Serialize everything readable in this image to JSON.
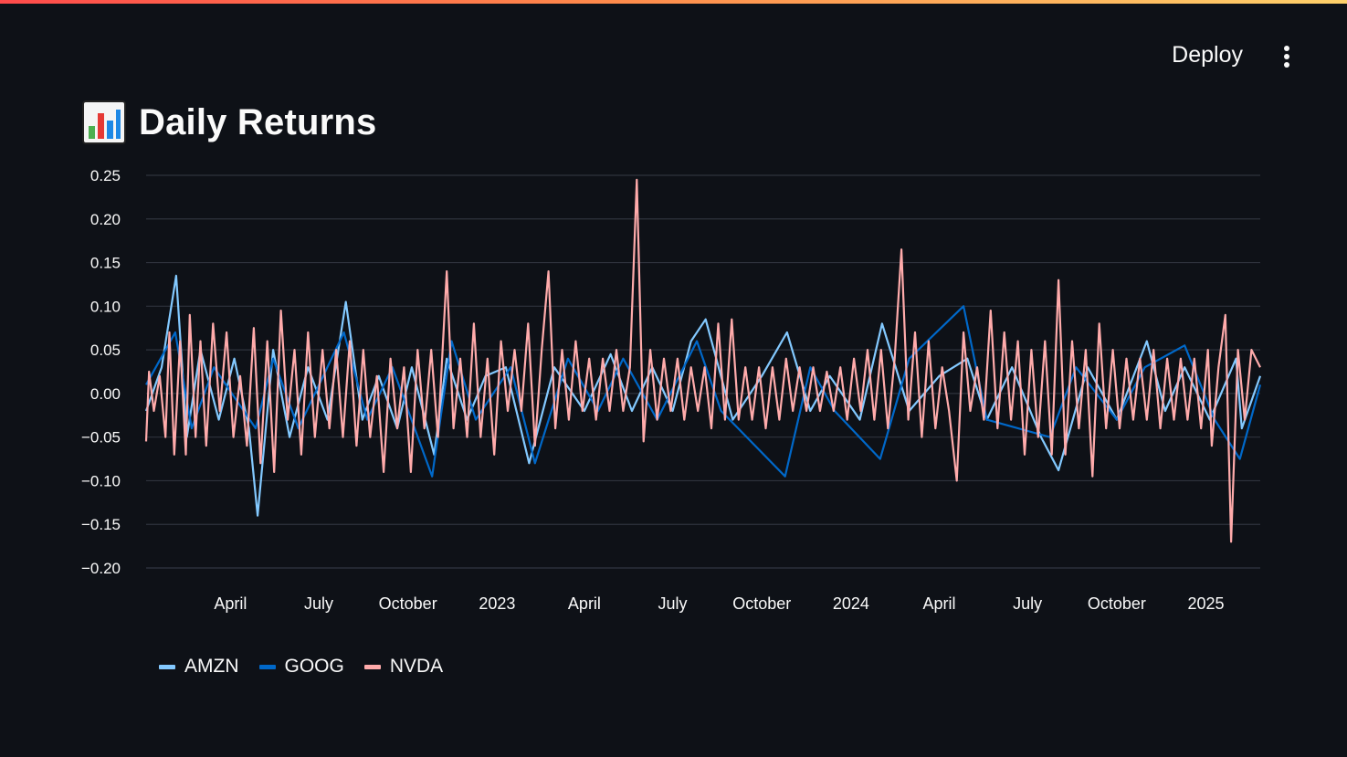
{
  "header": {
    "deploy_label": "Deploy",
    "menu_icon": "kebab-menu-icon"
  },
  "page": {
    "title": "Daily Returns",
    "title_icon": "bar-chart-icon"
  },
  "colors": {
    "background": "#0e1117",
    "grid": "#2f333d",
    "text": "#fafafa",
    "AMZN": "#83c9ff",
    "GOOG": "#0068c9",
    "NVDA": "#ffabab"
  },
  "chart_data": {
    "type": "line",
    "title": "",
    "xlabel": "",
    "ylabel": "",
    "x_range": [
      "2022-01-04",
      "2025-02-26"
    ],
    "ylim": [
      -0.2,
      0.25
    ],
    "y_ticks": [
      0.25,
      0.2,
      0.15,
      0.1,
      0.05,
      0.0,
      -0.05,
      -0.1,
      -0.15,
      -0.2
    ],
    "y_tick_labels": [
      "0.25",
      "0.20",
      "0.15",
      "0.10",
      "0.05",
      "0.00",
      "−0.05",
      "−0.10",
      "−0.15",
      "−0.20"
    ],
    "x_ticks": [
      {
        "date": "2022-04-01",
        "label": "April"
      },
      {
        "date": "2022-07-01",
        "label": "July"
      },
      {
        "date": "2022-10-01",
        "label": "October"
      },
      {
        "date": "2023-01-01",
        "label": "2023"
      },
      {
        "date": "2023-04-01",
        "label": "April"
      },
      {
        "date": "2023-07-01",
        "label": "July"
      },
      {
        "date": "2023-10-01",
        "label": "October"
      },
      {
        "date": "2024-01-01",
        "label": "2024"
      },
      {
        "date": "2024-04-01",
        "label": "April"
      },
      {
        "date": "2024-07-01",
        "label": "July"
      },
      {
        "date": "2024-10-01",
        "label": "October"
      },
      {
        "date": "2025-01-01",
        "label": "2025"
      }
    ],
    "grid": true,
    "legend_position": "bottom-left",
    "series": [
      {
        "name": "AMZN",
        "points": [
          [
            "2022-01-04",
            -0.02
          ],
          [
            "2022-01-20",
            0.03
          ],
          [
            "2022-02-04",
            0.135
          ],
          [
            "2022-02-15",
            -0.05
          ],
          [
            "2022-03-01",
            0.05
          ],
          [
            "2022-03-20",
            -0.03
          ],
          [
            "2022-04-05",
            0.04
          ],
          [
            "2022-04-20",
            -0.04
          ],
          [
            "2022-04-29",
            -0.14
          ],
          [
            "2022-05-15",
            0.05
          ],
          [
            "2022-06-01",
            -0.05
          ],
          [
            "2022-06-20",
            0.03
          ],
          [
            "2022-07-10",
            -0.03
          ],
          [
            "2022-07-29",
            0.105
          ],
          [
            "2022-08-15",
            -0.03
          ],
          [
            "2022-09-01",
            0.02
          ],
          [
            "2022-09-20",
            -0.04
          ],
          [
            "2022-10-05",
            0.03
          ],
          [
            "2022-10-28",
            -0.07
          ],
          [
            "2022-11-10",
            0.04
          ],
          [
            "2022-12-01",
            -0.03
          ],
          [
            "2022-12-20",
            0.02
          ],
          [
            "2023-01-10",
            0.03
          ],
          [
            "2023-02-03",
            -0.08
          ],
          [
            "2023-03-01",
            0.03
          ],
          [
            "2023-04-01",
            -0.02
          ],
          [
            "2023-04-28",
            0.045
          ],
          [
            "2023-05-20",
            -0.02
          ],
          [
            "2023-06-10",
            0.03
          ],
          [
            "2023-07-01",
            -0.02
          ],
          [
            "2023-07-20",
            0.06
          ],
          [
            "2023-08-04",
            0.085
          ],
          [
            "2023-09-01",
            -0.03
          ],
          [
            "2023-10-01",
            0.02
          ],
          [
            "2023-10-27",
            0.07
          ],
          [
            "2023-11-20",
            -0.02
          ],
          [
            "2023-12-10",
            0.02
          ],
          [
            "2024-01-10",
            -0.03
          ],
          [
            "2024-02-02",
            0.08
          ],
          [
            "2024-03-01",
            -0.02
          ],
          [
            "2024-04-01",
            0.02
          ],
          [
            "2024-04-30",
            0.04
          ],
          [
            "2024-05-20",
            -0.03
          ],
          [
            "2024-06-15",
            0.03
          ],
          [
            "2024-07-15",
            -0.05
          ],
          [
            "2024-08-02",
            -0.088
          ],
          [
            "2024-09-01",
            0.03
          ],
          [
            "2024-10-01",
            -0.03
          ],
          [
            "2024-11-01",
            0.06
          ],
          [
            "2024-11-20",
            -0.02
          ],
          [
            "2024-12-10",
            0.03
          ],
          [
            "2025-01-05",
            -0.03
          ],
          [
            "2025-02-01",
            0.04
          ],
          [
            "2025-02-07",
            -0.04
          ],
          [
            "2025-02-26",
            0.02
          ]
        ]
      },
      {
        "name": "GOOG",
        "points": [
          [
            "2022-01-04",
            0.01
          ],
          [
            "2022-02-03",
            0.07
          ],
          [
            "2022-02-20",
            -0.04
          ],
          [
            "2022-03-15",
            0.03
          ],
          [
            "2022-04-27",
            -0.04
          ],
          [
            "2022-05-15",
            0.04
          ],
          [
            "2022-06-10",
            -0.04
          ],
          [
            "2022-07-27",
            0.07
          ],
          [
            "2022-08-20",
            -0.03
          ],
          [
            "2022-09-15",
            0.03
          ],
          [
            "2022-10-26",
            -0.095
          ],
          [
            "2022-11-15",
            0.06
          ],
          [
            "2022-12-10",
            -0.03
          ],
          [
            "2023-01-15",
            0.03
          ],
          [
            "2023-02-09",
            -0.08
          ],
          [
            "2023-03-15",
            0.04
          ],
          [
            "2023-04-15",
            -0.02
          ],
          [
            "2023-05-11",
            0.04
          ],
          [
            "2023-06-15",
            -0.03
          ],
          [
            "2023-07-26",
            0.06
          ],
          [
            "2023-08-20",
            -0.02
          ],
          [
            "2023-10-25",
            -0.095
          ],
          [
            "2023-11-20",
            0.03
          ],
          [
            "2023-12-15",
            -0.02
          ],
          [
            "2024-01-31",
            -0.075
          ],
          [
            "2024-03-01",
            0.04
          ],
          [
            "2024-04-26",
            0.1
          ],
          [
            "2024-05-20",
            -0.03
          ],
          [
            "2024-07-24",
            -0.05
          ],
          [
            "2024-08-20",
            0.03
          ],
          [
            "2024-10-01",
            -0.03
          ],
          [
            "2024-10-30",
            0.03
          ],
          [
            "2024-12-10",
            0.055
          ],
          [
            "2025-01-10",
            -0.03
          ],
          [
            "2025-02-05",
            -0.075
          ],
          [
            "2025-02-26",
            0.01
          ]
        ]
      },
      {
        "name": "NVDA",
        "points": [
          [
            "2022-01-04",
            -0.055
          ],
          [
            "2022-01-07",
            0.025
          ],
          [
            "2022-01-12",
            -0.02
          ],
          [
            "2022-01-18",
            0.02
          ],
          [
            "2022-01-24",
            -0.05
          ],
          [
            "2022-01-28",
            0.07
          ],
          [
            "2022-02-02",
            -0.07
          ],
          [
            "2022-02-08",
            0.06
          ],
          [
            "2022-02-14",
            -0.07
          ],
          [
            "2022-02-18",
            0.09
          ],
          [
            "2022-02-24",
            -0.05
          ],
          [
            "2022-03-01",
            0.06
          ],
          [
            "2022-03-07",
            -0.06
          ],
          [
            "2022-03-14",
            0.08
          ],
          [
            "2022-03-21",
            -0.02
          ],
          [
            "2022-03-28",
            0.07
          ],
          [
            "2022-04-04",
            -0.05
          ],
          [
            "2022-04-11",
            0.02
          ],
          [
            "2022-04-18",
            -0.06
          ],
          [
            "2022-04-25",
            0.075
          ],
          [
            "2022-05-02",
            -0.08
          ],
          [
            "2022-05-09",
            0.06
          ],
          [
            "2022-05-16",
            -0.09
          ],
          [
            "2022-05-23",
            0.095
          ],
          [
            "2022-05-30",
            -0.03
          ],
          [
            "2022-06-06",
            0.05
          ],
          [
            "2022-06-13",
            -0.07
          ],
          [
            "2022-06-20",
            0.07
          ],
          [
            "2022-06-27",
            -0.05
          ],
          [
            "2022-07-05",
            0.05
          ],
          [
            "2022-07-12",
            -0.04
          ],
          [
            "2022-07-19",
            0.05
          ],
          [
            "2022-07-26",
            -0.05
          ],
          [
            "2022-08-02",
            0.06
          ],
          [
            "2022-08-09",
            -0.06
          ],
          [
            "2022-08-16",
            0.05
          ],
          [
            "2022-08-23",
            -0.05
          ],
          [
            "2022-08-30",
            0.02
          ],
          [
            "2022-09-06",
            -0.09
          ],
          [
            "2022-09-13",
            0.04
          ],
          [
            "2022-09-20",
            -0.04
          ],
          [
            "2022-09-27",
            0.03
          ],
          [
            "2022-10-04",
            -0.09
          ],
          [
            "2022-10-11",
            0.05
          ],
          [
            "2022-10-18",
            -0.04
          ],
          [
            "2022-10-25",
            0.05
          ],
          [
            "2022-11-01",
            -0.05
          ],
          [
            "2022-11-10",
            0.14
          ],
          [
            "2022-11-17",
            -0.04
          ],
          [
            "2022-11-24",
            0.04
          ],
          [
            "2022-12-01",
            -0.05
          ],
          [
            "2022-12-08",
            0.08
          ],
          [
            "2022-12-15",
            -0.05
          ],
          [
            "2022-12-22",
            0.04
          ],
          [
            "2022-12-29",
            -0.07
          ],
          [
            "2023-01-05",
            0.06
          ],
          [
            "2023-01-12",
            -0.02
          ],
          [
            "2023-01-19",
            0.05
          ],
          [
            "2023-01-26",
            -0.02
          ],
          [
            "2023-02-02",
            0.08
          ],
          [
            "2023-02-09",
            -0.06
          ],
          [
            "2023-02-16",
            0.05
          ],
          [
            "2023-02-23",
            0.14
          ],
          [
            "2023-03-02",
            -0.04
          ],
          [
            "2023-03-09",
            0.05
          ],
          [
            "2023-03-16",
            -0.03
          ],
          [
            "2023-03-23",
            0.06
          ],
          [
            "2023-03-30",
            -0.02
          ],
          [
            "2023-04-06",
            0.04
          ],
          [
            "2023-04-13",
            -0.03
          ],
          [
            "2023-04-20",
            0.04
          ],
          [
            "2023-04-27",
            -0.02
          ],
          [
            "2023-05-04",
            0.05
          ],
          [
            "2023-05-11",
            -0.02
          ],
          [
            "2023-05-18",
            0.03
          ],
          [
            "2023-05-25",
            0.245
          ],
          [
            "2023-06-01",
            -0.055
          ],
          [
            "2023-06-08",
            0.05
          ],
          [
            "2023-06-15",
            -0.03
          ],
          [
            "2023-06-22",
            0.04
          ],
          [
            "2023-06-29",
            -0.02
          ],
          [
            "2023-07-06",
            0.04
          ],
          [
            "2023-07-13",
            -0.03
          ],
          [
            "2023-07-20",
            0.03
          ],
          [
            "2023-07-27",
            -0.02
          ],
          [
            "2023-08-03",
            0.03
          ],
          [
            "2023-08-10",
            -0.04
          ],
          [
            "2023-08-17",
            0.08
          ],
          [
            "2023-08-24",
            -0.03
          ],
          [
            "2023-08-31",
            0.085
          ],
          [
            "2023-09-07",
            -0.03
          ],
          [
            "2023-09-14",
            0.03
          ],
          [
            "2023-09-21",
            -0.03
          ],
          [
            "2023-09-28",
            0.03
          ],
          [
            "2023-10-05",
            -0.04
          ],
          [
            "2023-10-12",
            0.03
          ],
          [
            "2023-10-19",
            -0.03
          ],
          [
            "2023-10-26",
            0.04
          ],
          [
            "2023-11-02",
            -0.02
          ],
          [
            "2023-11-09",
            0.03
          ],
          [
            "2023-11-16",
            -0.02
          ],
          [
            "2023-11-23",
            0.03
          ],
          [
            "2023-11-30",
            -0.02
          ],
          [
            "2023-12-07",
            0.025
          ],
          [
            "2023-12-14",
            -0.02
          ],
          [
            "2023-12-21",
            0.03
          ],
          [
            "2023-12-28",
            -0.03
          ],
          [
            "2024-01-04",
            0.04
          ],
          [
            "2024-01-11",
            -0.02
          ],
          [
            "2024-01-18",
            0.05
          ],
          [
            "2024-01-25",
            -0.03
          ],
          [
            "2024-02-01",
            0.05
          ],
          [
            "2024-02-08",
            -0.04
          ],
          [
            "2024-02-15",
            0.04
          ],
          [
            "2024-02-22",
            0.165
          ],
          [
            "2024-02-29",
            -0.03
          ],
          [
            "2024-03-07",
            0.07
          ],
          [
            "2024-03-14",
            -0.05
          ],
          [
            "2024-03-21",
            0.06
          ],
          [
            "2024-03-28",
            -0.04
          ],
          [
            "2024-04-04",
            0.03
          ],
          [
            "2024-04-11",
            -0.02
          ],
          [
            "2024-04-19",
            -0.1
          ],
          [
            "2024-04-26",
            0.07
          ],
          [
            "2024-05-03",
            -0.02
          ],
          [
            "2024-05-10",
            0.03
          ],
          [
            "2024-05-17",
            -0.03
          ],
          [
            "2024-05-24",
            0.095
          ],
          [
            "2024-05-31",
            -0.04
          ],
          [
            "2024-06-07",
            0.07
          ],
          [
            "2024-06-14",
            -0.03
          ],
          [
            "2024-06-21",
            0.06
          ],
          [
            "2024-06-28",
            -0.07
          ],
          [
            "2024-07-05",
            0.05
          ],
          [
            "2024-07-12",
            -0.05
          ],
          [
            "2024-07-19",
            0.06
          ],
          [
            "2024-07-26",
            -0.07
          ],
          [
            "2024-08-02",
            0.13
          ],
          [
            "2024-08-09",
            -0.07
          ],
          [
            "2024-08-16",
            0.06
          ],
          [
            "2024-08-23",
            -0.04
          ],
          [
            "2024-08-30",
            0.05
          ],
          [
            "2024-09-06",
            -0.095
          ],
          [
            "2024-09-13",
            0.08
          ],
          [
            "2024-09-20",
            -0.04
          ],
          [
            "2024-09-27",
            0.05
          ],
          [
            "2024-10-04",
            -0.04
          ],
          [
            "2024-10-11",
            0.04
          ],
          [
            "2024-10-18",
            -0.03
          ],
          [
            "2024-10-25",
            0.04
          ],
          [
            "2024-11-01",
            -0.03
          ],
          [
            "2024-11-08",
            0.05
          ],
          [
            "2024-11-15",
            -0.04
          ],
          [
            "2024-11-22",
            0.04
          ],
          [
            "2024-11-29",
            -0.03
          ],
          [
            "2024-12-06",
            0.04
          ],
          [
            "2024-12-13",
            -0.03
          ],
          [
            "2024-12-20",
            0.04
          ],
          [
            "2024-12-27",
            -0.04
          ],
          [
            "2025-01-03",
            0.05
          ],
          [
            "2025-01-07",
            -0.06
          ],
          [
            "2025-01-14",
            0.03
          ],
          [
            "2025-01-21",
            0.09
          ],
          [
            "2025-01-27",
            -0.17
          ],
          [
            "2025-02-03",
            0.05
          ],
          [
            "2025-02-10",
            -0.03
          ],
          [
            "2025-02-17",
            0.05
          ],
          [
            "2025-02-26",
            0.03
          ]
        ]
      }
    ]
  },
  "legend": [
    {
      "label": "AMZN"
    },
    {
      "label": "GOOG"
    },
    {
      "label": "NVDA"
    }
  ]
}
